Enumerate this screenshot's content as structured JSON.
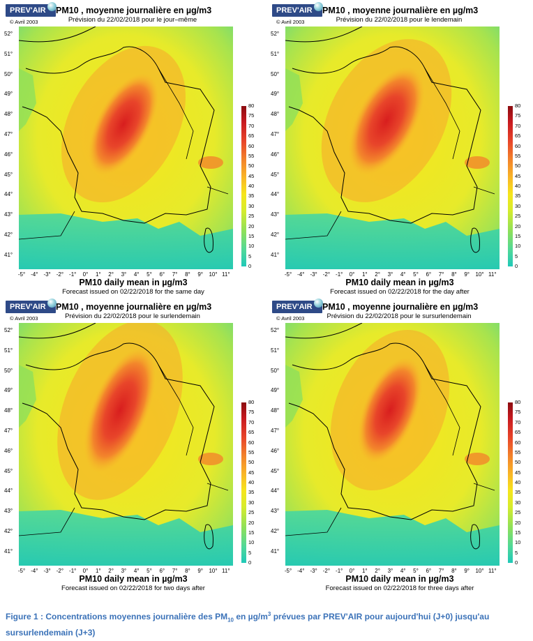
{
  "common": {
    "logo_text": "PREV'AIR",
    "title": "PM10 , moyenne journalière en µg/m3",
    "copyright": "© Avril 2003",
    "footer_title": "PM10 daily mean in µg/m3",
    "lat_ticks": [
      "52°",
      "51°",
      "50°",
      "49°",
      "48°",
      "47°",
      "46°",
      "45°",
      "44°",
      "43°",
      "42°",
      "41°"
    ],
    "lon_ticks": [
      "-5°",
      "-4°",
      "-3°",
      "-2°",
      "-1°",
      "0°",
      "1°",
      "2°",
      "3°",
      "4°",
      "5°",
      "6°",
      "7°",
      "8°",
      "9°",
      "10°",
      "11°"
    ],
    "colorbar_ticks": [
      "80",
      "75",
      "70",
      "65",
      "60",
      "55",
      "50",
      "45",
      "40",
      "35",
      "30",
      "25",
      "20",
      "15",
      "10",
      "5",
      "0"
    ],
    "colorbar_colors": [
      "#20c9b8",
      "#8ee05a",
      "#f6e51c",
      "#f3862b",
      "#c81a20"
    ]
  },
  "panels": [
    {
      "subtitle": "Prévision du 22/02/2018 pour le jour–même",
      "footer_sub": "Forecast issued on 02/22/2018 for the same day"
    },
    {
      "subtitle": "Prévision du 22/02/2018 pour le lendemain",
      "footer_sub": "Forecast issued on 02/22/2018 for the day after"
    },
    {
      "subtitle": "Prévision du 22/02/2018 pour le surlendemain",
      "footer_sub": "Forecast issued on 02/22/2018 for two days after"
    },
    {
      "subtitle": "Prévision du 22/02/2018 pour le sursurlendemain",
      "footer_sub": "Forecast issued on 02/22/2018 for three days after"
    }
  ],
  "caption": {
    "prefix": "Figure 1 : Concentrations moyennes journalière des PM",
    "sub": "10",
    "mid": " en µg/m",
    "sup": "3",
    "suffix": " prévues par PREV'AIR pour aujourd'hui (J+0) jusqu'au sursurlendemain (J+3)"
  }
}
